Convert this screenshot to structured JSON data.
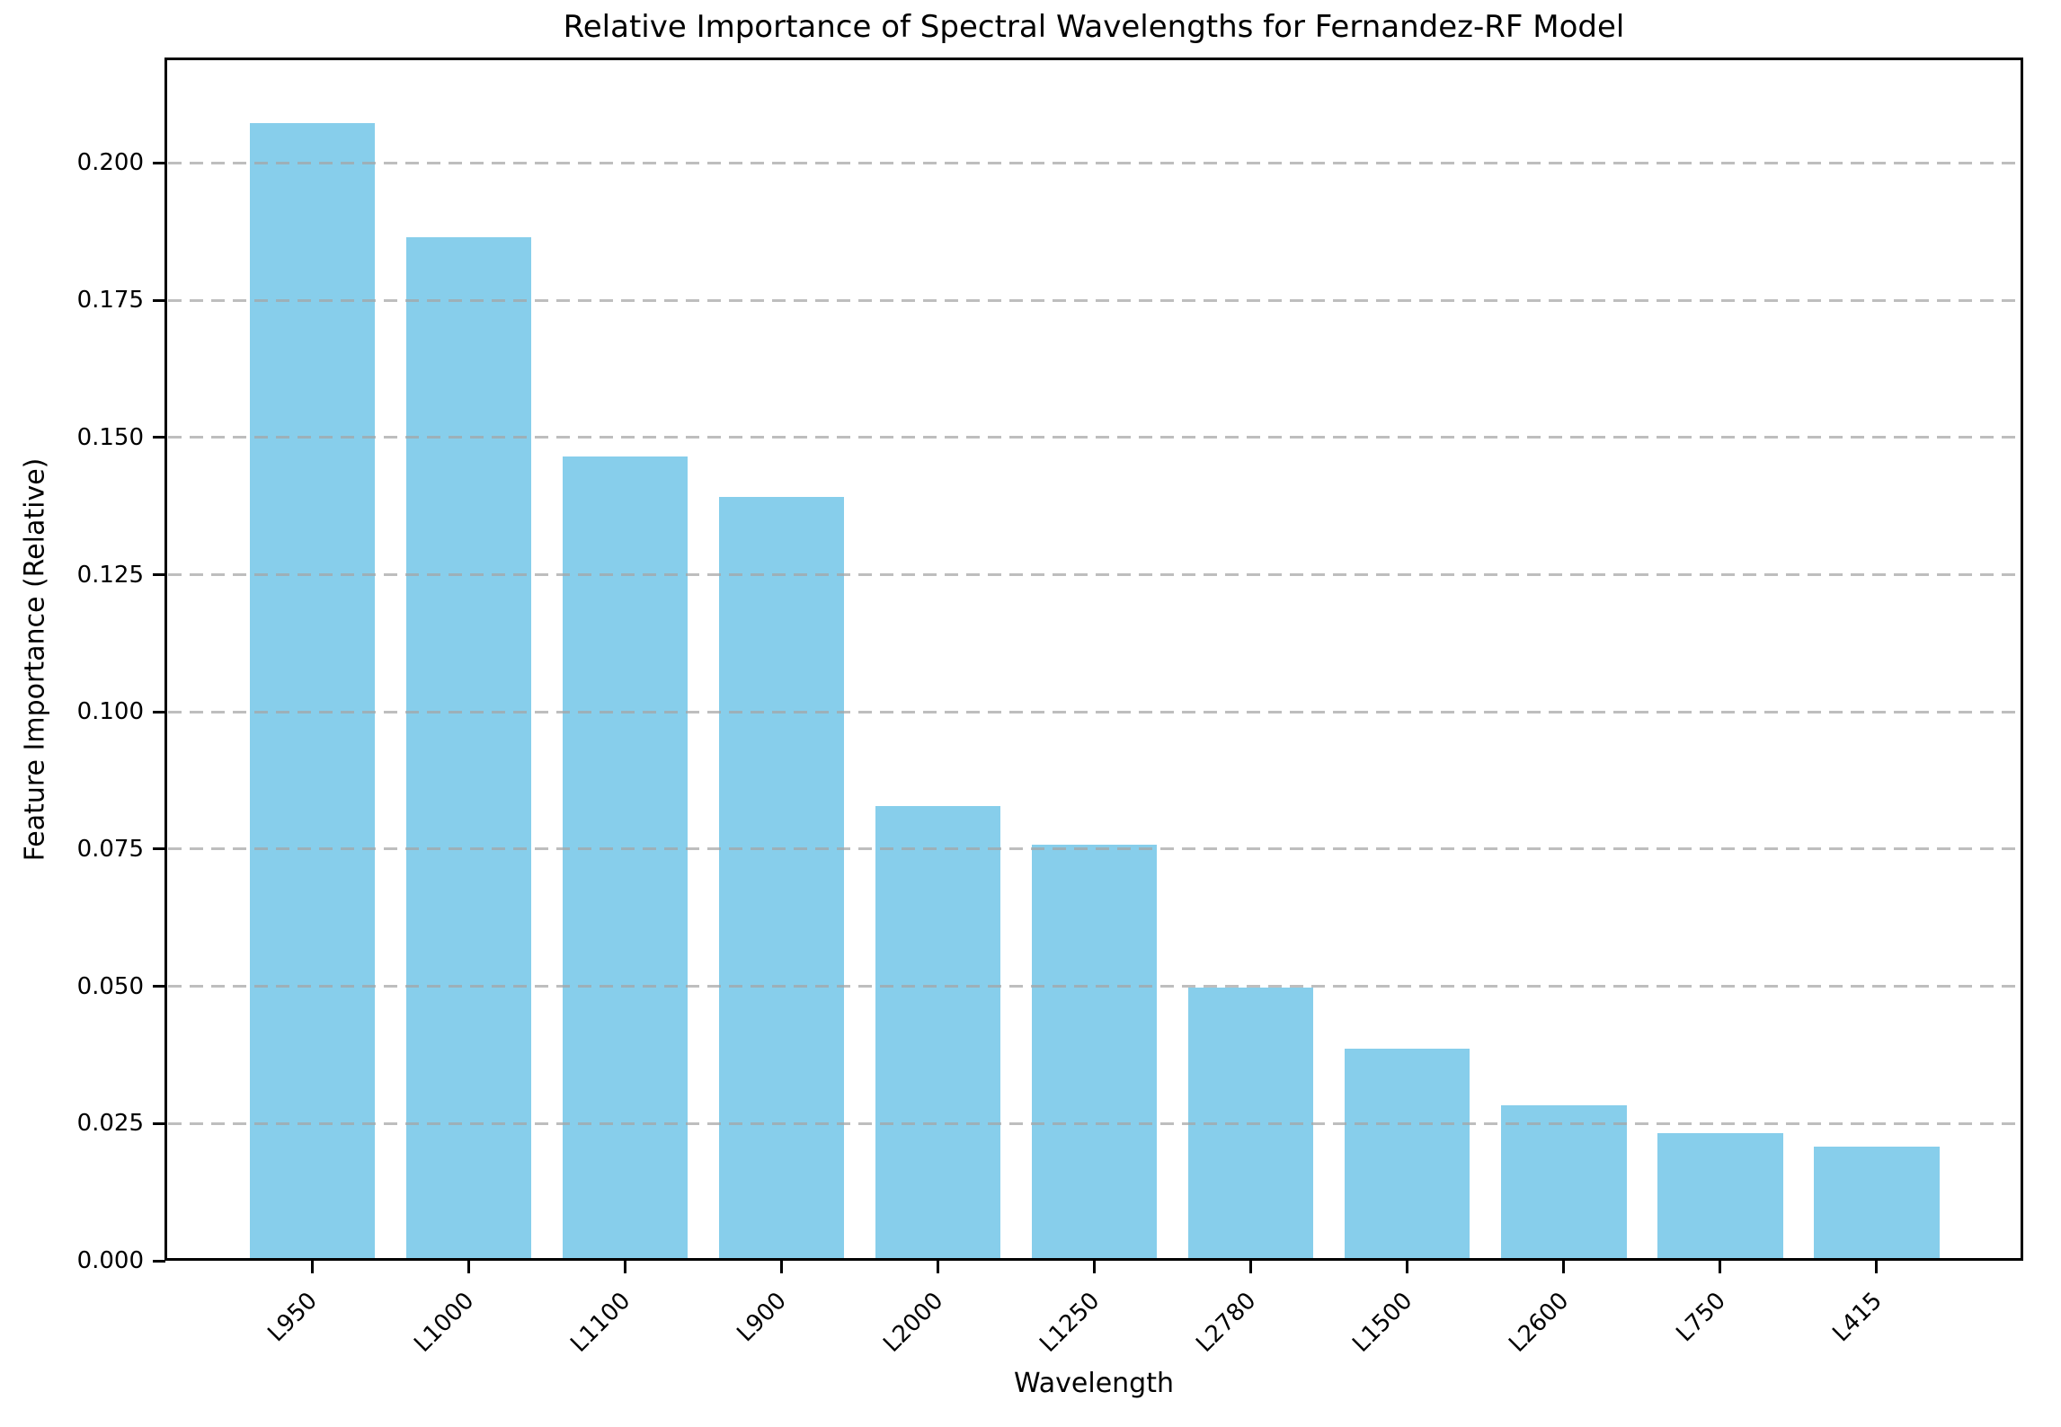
{
  "chart_data": {
    "type": "bar",
    "title": "Relative Importance of Spectral Wavelengths for Fernandez-RF Model",
    "xlabel": "Wavelength",
    "ylabel": "Feature Importance (Relative)",
    "categories": [
      "L950",
      "L1000",
      "L1100",
      "L900",
      "L2000",
      "L1250",
      "L2780",
      "L1500",
      "L2600",
      "L750",
      "L415"
    ],
    "values": [
      0.2073,
      0.1865,
      0.1466,
      0.1392,
      0.0829,
      0.0758,
      0.0497,
      0.0386,
      0.0284,
      0.0232,
      0.0208
    ],
    "ytick_labels": [
      "0.000",
      "0.025",
      "0.050",
      "0.075",
      "0.100",
      "0.125",
      "0.150",
      "0.175",
      "0.200"
    ],
    "ytick_values": [
      0.0,
      0.025,
      0.05,
      0.075,
      0.1,
      0.125,
      0.15,
      0.175,
      0.2
    ],
    "ylim": [
      0,
      0.2189
    ],
    "bar_color": "#87CEEB",
    "grid_color": "#a5a5a5",
    "grid_style": "dashed",
    "grid_axis": "y",
    "legend": "none"
  }
}
